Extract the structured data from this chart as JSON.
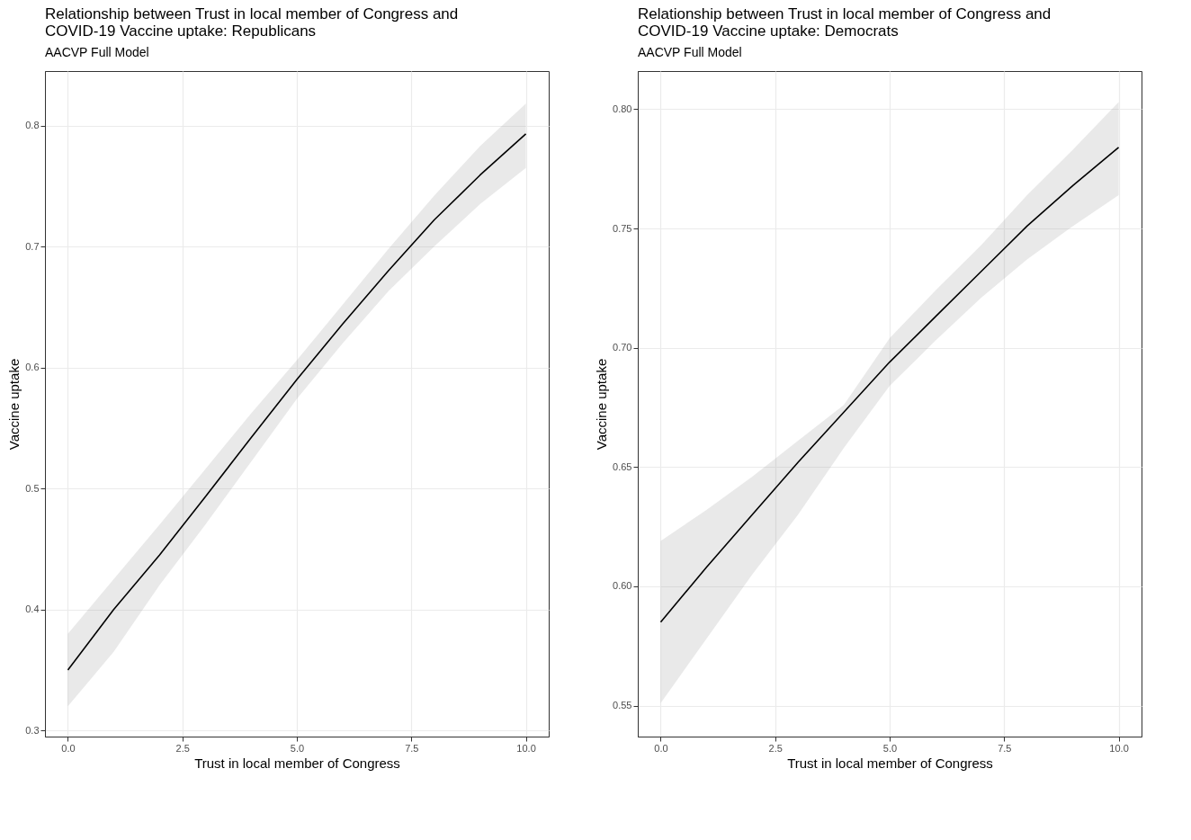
{
  "chart_data": [
    {
      "type": "line",
      "title": "Relationship between Trust in local member of Congress and\nCOVID-19 Vaccine uptake: Republicans",
      "subtitle": "AACVP Full Model",
      "xlabel": "Trust in local member of Congress",
      "ylabel": "Vaccine uptake",
      "x": [
        0,
        1,
        2,
        3,
        4,
        5,
        6,
        7,
        8,
        9,
        10
      ],
      "series": [
        {
          "color": "#000000",
          "values": [
            0.35,
            0.4,
            0.445,
            0.493,
            0.542,
            0.59,
            0.636,
            0.68,
            0.722,
            0.759,
            0.793
          ],
          "lower": [
            0.32,
            0.365,
            0.42,
            0.47,
            0.522,
            0.574,
            0.62,
            0.663,
            0.7,
            0.735,
            0.765
          ],
          "upper": [
            0.38,
            0.425,
            0.47,
            0.516,
            0.562,
            0.606,
            0.652,
            0.698,
            0.742,
            0.783,
            0.818
          ]
        }
      ],
      "xlim": [
        -0.5,
        10.5
      ],
      "xticks": [
        {
          "value": 0,
          "label": "0.0"
        },
        {
          "value": 2.5,
          "label": "2.5"
        },
        {
          "value": 5,
          "label": "5.0"
        },
        {
          "value": 7.5,
          "label": "7.5"
        },
        {
          "value": 10,
          "label": "10.0"
        }
      ],
      "ylim": [
        0.295,
        0.845
      ],
      "yticks": [
        0.3,
        0.4,
        0.5,
        0.6,
        0.7,
        0.8
      ],
      "grid": true
    },
    {
      "type": "line",
      "title": "Relationship between Trust in local member of Congress and\nCOVID-19 Vaccine uptake: Democrats",
      "subtitle": "AACVP Full Model",
      "xlabel": "Trust in local member of Congress",
      "ylabel": "Vaccine uptake",
      "x": [
        0,
        1,
        2,
        3,
        4,
        5,
        6,
        7,
        8,
        9,
        10
      ],
      "series": [
        {
          "color": "#000000",
          "values": [
            0.585,
            0.608,
            0.63,
            0.652,
            0.673,
            0.694,
            0.713,
            0.732,
            0.751,
            0.768,
            0.784
          ],
          "lower": [
            0.551,
            0.578,
            0.605,
            0.63,
            0.658,
            0.684,
            0.703,
            0.721,
            0.737,
            0.751,
            0.764
          ],
          "upper": [
            0.619,
            0.632,
            0.646,
            0.661,
            0.676,
            0.704,
            0.724,
            0.743,
            0.764,
            0.783,
            0.803
          ]
        }
      ],
      "xlim": [
        -0.5,
        10.5
      ],
      "xticks": [
        {
          "value": 0,
          "label": "0.0"
        },
        {
          "value": 2.5,
          "label": "2.5"
        },
        {
          "value": 5,
          "label": "5.0"
        },
        {
          "value": 7.5,
          "label": "7.5"
        },
        {
          "value": 10,
          "label": "10.0"
        }
      ],
      "ylim": [
        0.537,
        0.816
      ],
      "yticks": [
        {
          "value": 0.55,
          "label": "0.55"
        },
        {
          "value": 0.6,
          "label": "0.60"
        },
        {
          "value": 0.65,
          "label": "0.65"
        },
        {
          "value": 0.7,
          "label": "0.70"
        },
        {
          "value": 0.75,
          "label": "0.75"
        },
        {
          "value": 0.8,
          "label": "0.80"
        }
      ],
      "grid": true
    }
  ]
}
